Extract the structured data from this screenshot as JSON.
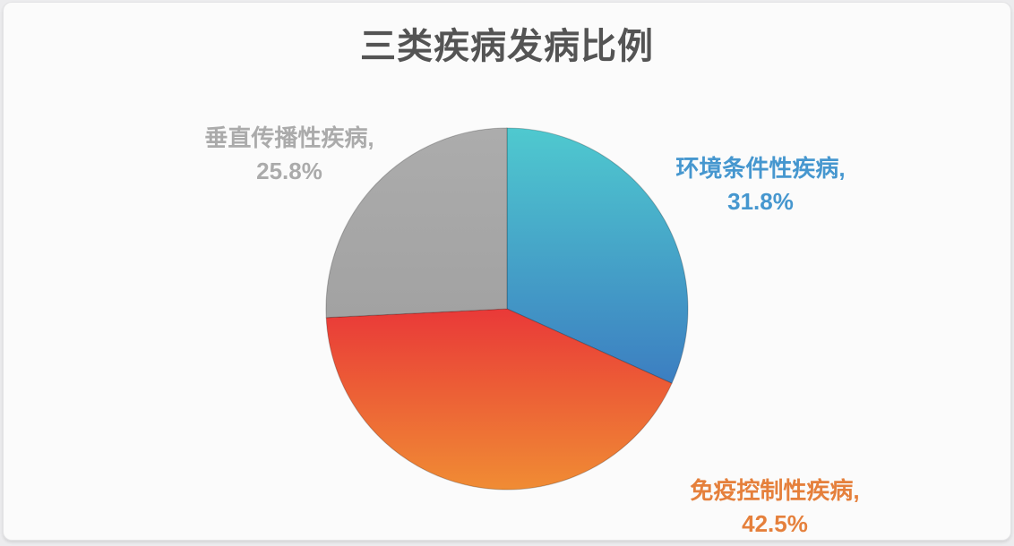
{
  "page": {
    "background": "#ECECEE",
    "card_background": "#FBFBFB",
    "title_color": "#545454"
  },
  "chart_data": {
    "type": "pie",
    "title": "三类疾病发病比例",
    "start_angle_deg": 0,
    "direction": "clockwise",
    "legend_position": "none",
    "labels_position": "outside",
    "unit": "%",
    "categories": [
      "环境条件性疾病",
      "免疫控制性疾病",
      "垂直传播性疾病"
    ],
    "values": [
      31.8,
      42.5,
      25.8
    ],
    "slices": [
      {
        "name": "环境条件性疾病",
        "value": 31.8,
        "label_name": "环境条件性疾病,",
        "label_pct": "31.8%",
        "label_color": "#4697CF",
        "fill_top": "#4FC9CF",
        "fill_bottom": "#3C7EC1"
      },
      {
        "name": "免疫控制性疾病",
        "value": 42.5,
        "label_name": "免疫控制性疾病,",
        "label_pct": "42.5%",
        "label_color": "#E5803C",
        "fill_top": "#E93938",
        "fill_bottom": "#F08C34"
      },
      {
        "name": "垂直传播性疾病",
        "value": 25.8,
        "label_name": "垂直传播性疾病,",
        "label_pct": "25.8%",
        "label_color": "#ABABAB",
        "fill_top": "#ACACAC",
        "fill_bottom": "#A2A2A2"
      }
    ]
  }
}
